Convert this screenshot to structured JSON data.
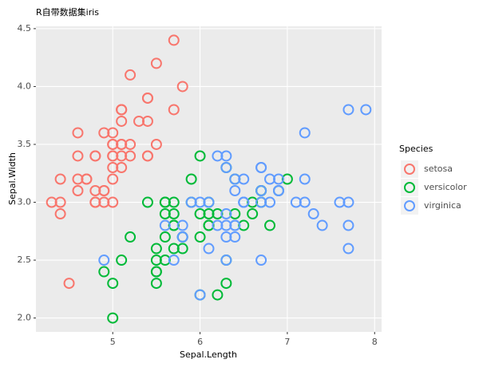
{
  "chart_data": {
    "type": "scatter",
    "title": "R自带数据集iris",
    "x_label": "Sepal.Length",
    "y_label": "Sepal.Width",
    "legend_title": "Species",
    "legend_position": "right",
    "grid": true,
    "xlim": [
      4.12,
      8.08
    ],
    "ylim": [
      1.88,
      4.52
    ],
    "xticks": [
      5,
      6,
      7,
      8
    ],
    "yticks": [
      {
        "value": 2.0,
        "label": "2.0"
      },
      2.5,
      {
        "value": 3.0,
        "label": "3.0"
      },
      3.5,
      {
        "value": 4.0,
        "label": "4.0"
      },
      4.5
    ],
    "series": [
      {
        "name": "setosa",
        "color": "#F8766D",
        "x": [
          5.1,
          4.9,
          4.7,
          4.6,
          5.0,
          5.4,
          4.6,
          5.0,
          4.4,
          4.9,
          5.4,
          4.8,
          4.8,
          4.3,
          5.8,
          5.7,
          5.4,
          5.1,
          5.7,
          5.1,
          5.4,
          5.1,
          4.6,
          5.1,
          4.8,
          5.0,
          5.0,
          5.2,
          5.2,
          4.7,
          4.8,
          5.4,
          5.2,
          5.5,
          4.9,
          5.0,
          5.5,
          4.9,
          4.4,
          5.1,
          5.0,
          4.5,
          4.4,
          5.0,
          5.1,
          4.8,
          5.1,
          4.6,
          5.3,
          5.0
        ],
        "values": [
          3.5,
          3.0,
          3.2,
          3.1,
          3.6,
          3.9,
          3.4,
          3.4,
          2.9,
          3.1,
          3.7,
          3.4,
          3.0,
          3.0,
          4.0,
          4.4,
          3.9,
          3.5,
          3.8,
          3.8,
          3.4,
          3.7,
          3.6,
          3.3,
          3.4,
          3.0,
          3.4,
          3.5,
          3.4,
          3.2,
          3.1,
          3.4,
          4.1,
          4.2,
          3.1,
          3.2,
          3.5,
          3.6,
          3.0,
          3.4,
          3.5,
          2.3,
          3.2,
          3.5,
          3.8,
          3.0,
          3.8,
          3.2,
          3.7,
          3.3
        ]
      },
      {
        "name": "versicolor",
        "color": "#00BA38",
        "x": [
          7.0,
          6.4,
          6.9,
          5.5,
          6.5,
          5.7,
          6.3,
          4.9,
          6.6,
          5.2,
          5.0,
          5.9,
          6.0,
          6.1,
          5.6,
          6.7,
          5.6,
          5.8,
          6.2,
          5.6,
          5.9,
          6.1,
          6.3,
          6.1,
          6.4,
          6.6,
          6.8,
          6.7,
          6.0,
          5.7,
          5.5,
          5.5,
          5.8,
          6.0,
          5.4,
          6.0,
          6.7,
          6.3,
          5.6,
          5.5,
          5.5,
          6.1,
          5.8,
          5.0,
          5.6,
          5.7,
          5.7,
          6.2,
          5.1,
          5.7
        ],
        "values": [
          3.2,
          3.2,
          3.1,
          2.3,
          2.8,
          2.8,
          3.3,
          2.4,
          2.9,
          2.7,
          2.0,
          3.0,
          2.2,
          2.9,
          2.9,
          3.1,
          3.0,
          2.7,
          2.2,
          2.5,
          3.2,
          2.8,
          2.5,
          2.8,
          2.9,
          3.0,
          2.8,
          3.0,
          2.9,
          2.6,
          2.4,
          2.4,
          2.7,
          2.7,
          3.0,
          3.4,
          3.1,
          2.3,
          3.0,
          2.5,
          2.6,
          3.0,
          2.6,
          2.3,
          2.7,
          3.0,
          2.9,
          2.9,
          2.5,
          2.8
        ]
      },
      {
        "name": "virginica",
        "color": "#619CFF",
        "x": [
          6.3,
          5.8,
          7.1,
          6.3,
          6.5,
          7.6,
          4.9,
          7.3,
          6.7,
          7.2,
          6.5,
          6.4,
          6.8,
          5.7,
          5.8,
          6.4,
          6.5,
          7.7,
          7.7,
          6.0,
          6.9,
          5.6,
          7.7,
          6.3,
          6.7,
          7.2,
          6.2,
          6.1,
          6.4,
          7.2,
          7.4,
          7.9,
          6.4,
          6.3,
          6.1,
          7.7,
          6.3,
          6.4,
          6.0,
          6.9,
          6.7,
          6.9,
          5.8,
          6.8,
          6.7,
          6.7,
          6.3,
          6.5,
          6.2,
          5.9
        ],
        "values": [
          3.3,
          2.7,
          3.0,
          2.9,
          3.0,
          3.0,
          2.5,
          2.9,
          2.5,
          3.6,
          3.2,
          2.7,
          3.0,
          2.5,
          2.8,
          3.2,
          3.0,
          3.8,
          2.6,
          2.2,
          3.2,
          2.8,
          2.8,
          2.7,
          3.3,
          3.2,
          2.8,
          3.0,
          2.8,
          3.0,
          2.8,
          3.8,
          2.8,
          2.8,
          2.6,
          3.0,
          3.4,
          3.1,
          3.0,
          3.1,
          3.1,
          3.1,
          2.7,
          3.2,
          3.3,
          3.0,
          2.5,
          3.0,
          3.4,
          3.0
        ]
      }
    ]
  }
}
